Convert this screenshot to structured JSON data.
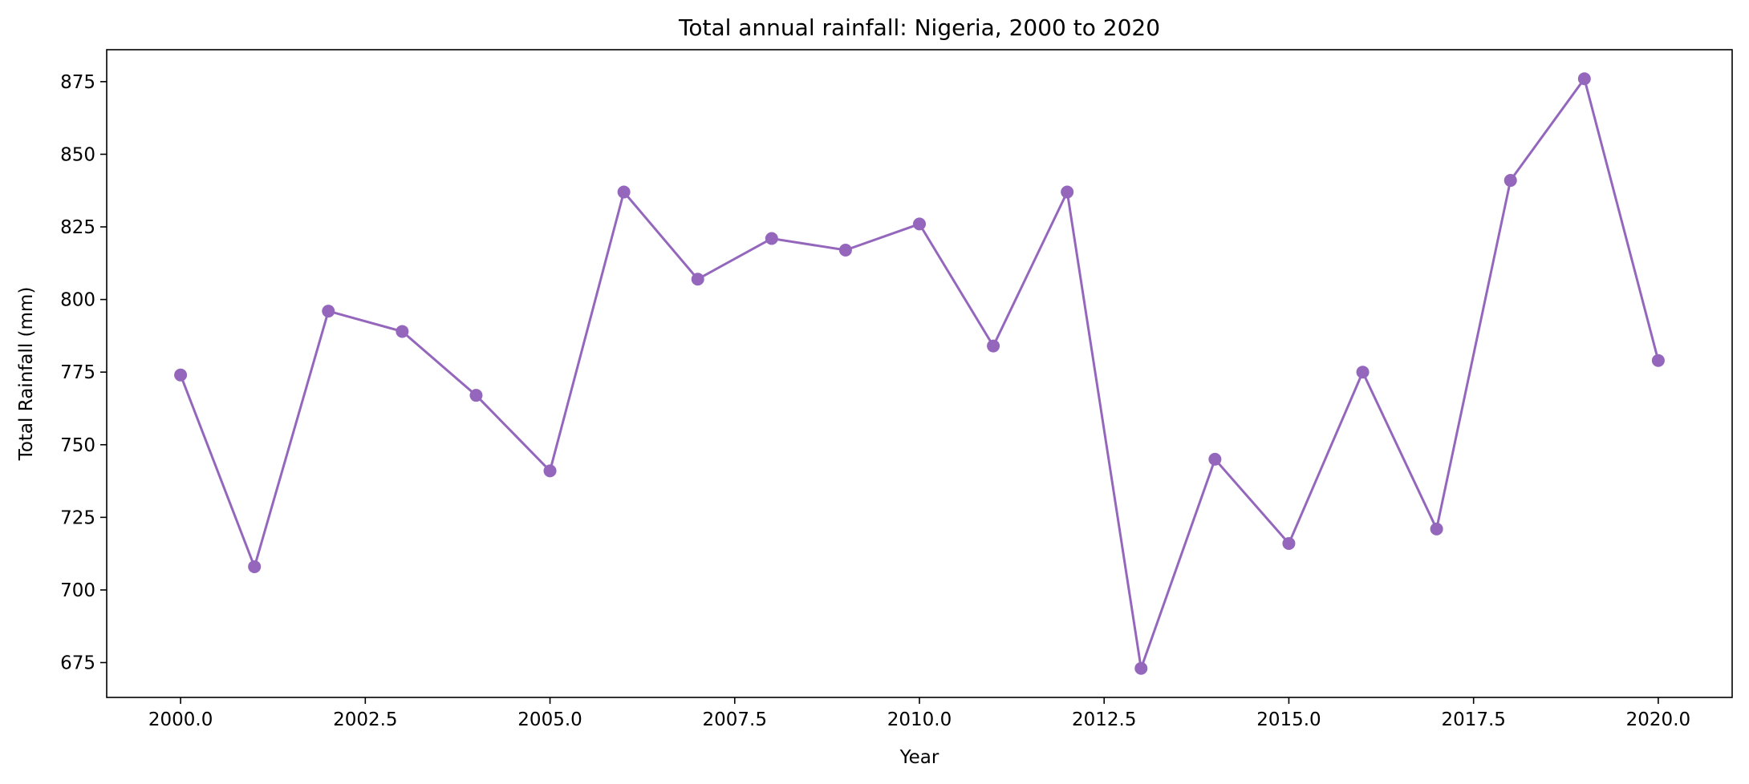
{
  "chart_data": {
    "type": "line",
    "title": "Total annual rainfall: Nigeria, 2000 to 2020",
    "xlabel": "Year",
    "ylabel": "Total Rainfall (mm)",
    "xlim": [
      1999.0,
      2021.0
    ],
    "ylim": [
      663,
      886
    ],
    "xticks": [
      2000.0,
      2002.5,
      2005.0,
      2007.5,
      2010.0,
      2012.5,
      2015.0,
      2017.5,
      2020.0
    ],
    "xtick_labels": [
      "2000.0",
      "2002.5",
      "2005.0",
      "2007.5",
      "2010.0",
      "2012.5",
      "2015.0",
      "2017.5",
      "2020.0"
    ],
    "yticks": [
      675,
      700,
      725,
      750,
      775,
      800,
      825,
      850,
      875
    ],
    "ytick_labels": [
      "675",
      "700",
      "725",
      "750",
      "775",
      "800",
      "825",
      "850",
      "875"
    ],
    "grid": false,
    "marker": "circle",
    "color": "#9467bd",
    "x": [
      2000,
      2001,
      2002,
      2003,
      2004,
      2005,
      2006,
      2007,
      2008,
      2009,
      2010,
      2011,
      2012,
      2013,
      2014,
      2015,
      2016,
      2017,
      2018,
      2019,
      2020
    ],
    "y": [
      774,
      708,
      796,
      789,
      767,
      741,
      837,
      807,
      821,
      817,
      826,
      784,
      837,
      673,
      745,
      716,
      775,
      721,
      841,
      876,
      779
    ]
  }
}
